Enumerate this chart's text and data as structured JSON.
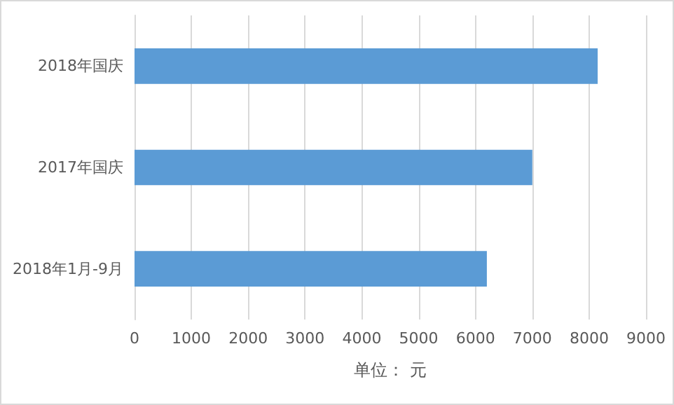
{
  "chart_data": {
    "type": "bar",
    "orientation": "horizontal",
    "categories": [
      "2018年国庆",
      "2017年国庆",
      "2018年1月-9月"
    ],
    "values": [
      8150,
      7000,
      6200
    ],
    "color": "#5b9bd5",
    "xlim": [
      0,
      9000
    ],
    "xticks": [
      0,
      1000,
      2000,
      3000,
      4000,
      5000,
      6000,
      7000,
      8000,
      9000
    ],
    "xlabel": "单位： 元",
    "grid": "x"
  }
}
